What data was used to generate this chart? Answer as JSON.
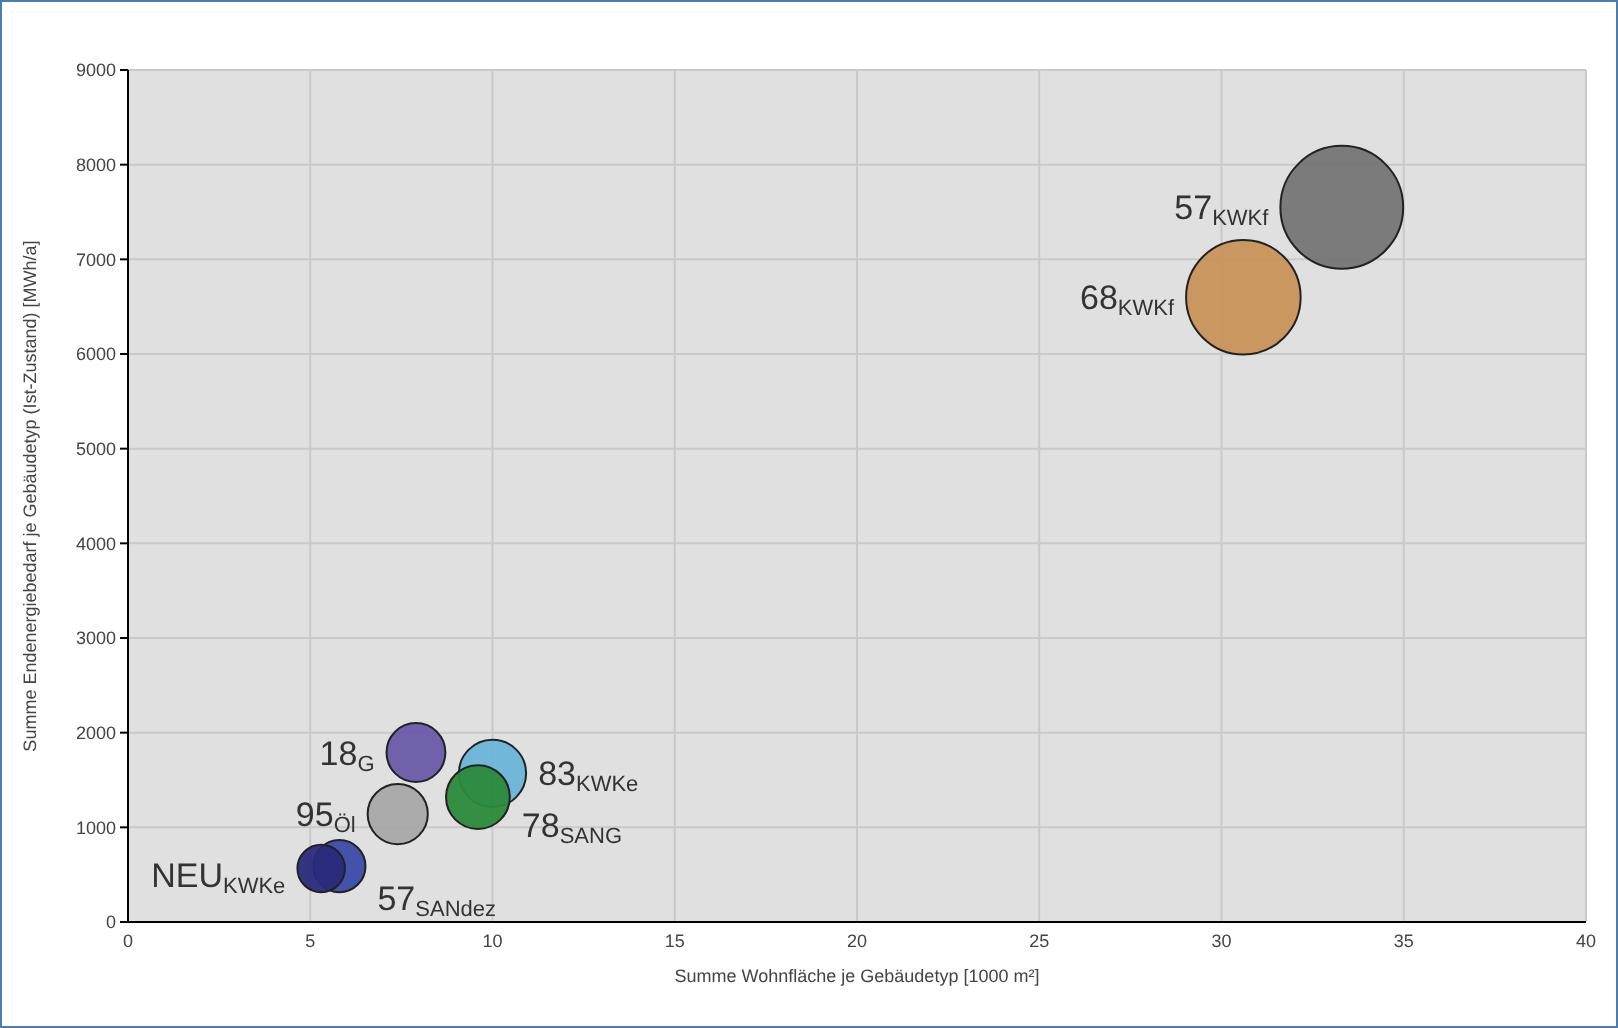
{
  "chart_data": {
    "type": "bubble",
    "xlabel": "Summe Wohnfläche je Gebäudetyp [1000 m²]",
    "ylabel": "Summe Endenergiebedarf je Gebäudetyp (Ist-Zustand) [MWh/a]",
    "xlim": [
      0,
      40
    ],
    "xticks": [
      0,
      5,
      10,
      15,
      20,
      25,
      30,
      35,
      40
    ],
    "ylim": [
      0,
      9000
    ],
    "yticks": [
      0,
      1000,
      2000,
      3000,
      4000,
      5000,
      6000,
      7000,
      8000,
      9000
    ],
    "grid": true,
    "legend": false,
    "series": [
      {
        "name": "57$_{KWKf}$",
        "color": "#757575",
        "x": [
          33.3
        ],
        "values": [
          7550
        ],
        "sizes": [
          1
        ]
      },
      {
        "name": "68$_{KWKf}$",
        "color": "#c8925a",
        "x": [
          30.6
        ],
        "values": [
          6600
        ],
        "sizes": [
          0.87
        ]
      },
      {
        "name": "18$_{G}$",
        "color": "#6a5aa8",
        "x": [
          7.9
        ],
        "values": [
          1790
        ],
        "sizes": [
          0.23
        ]
      },
      {
        "name": "83$_{KWKe}$",
        "color": "#6ab4d8",
        "x": [
          10.0
        ],
        "values": [
          1570
        ],
        "sizes": [
          0.3
        ]
      },
      {
        "name": "78$_{SANG}$",
        "color": "#2a8a3a",
        "x": [
          9.6
        ],
        "values": [
          1320
        ],
        "sizes": [
          0.27
        ]
      },
      {
        "name": "95$_{Öl}$",
        "color": "#a8a8a8",
        "x": [
          7.4
        ],
        "values": [
          1140
        ],
        "sizes": [
          0.24
        ]
      },
      {
        "name": "57$_{SANdez}$",
        "color": "#3a4aa8",
        "x": [
          5.8
        ],
        "values": [
          590
        ],
        "sizes": [
          0.18
        ]
      },
      {
        "name": "NEU$_{KWKe}$",
        "color": "#2a2a7a",
        "x": [
          5.3
        ],
        "values": [
          565
        ],
        "sizes": [
          0.15
        ]
      }
    ]
  }
}
